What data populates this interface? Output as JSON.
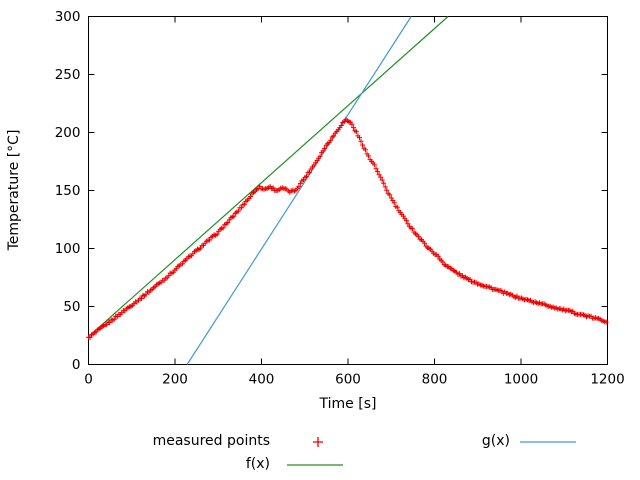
{
  "chart_data": {
    "type": "scatter",
    "title": "",
    "xlabel": "Time [s]",
    "ylabel": "Temperature [°C]",
    "xlim": [
      0,
      1200
    ],
    "ylim": [
      0,
      300
    ],
    "x_ticks": [
      0,
      200,
      400,
      600,
      800,
      1000,
      1200
    ],
    "y_ticks": [
      0,
      50,
      100,
      150,
      200,
      250,
      300
    ],
    "grid": false,
    "legend_position": "below-plot",
    "measured": {
      "label": "measured points",
      "color": "#ee0000",
      "marker": "plus",
      "sample_step": 3.5,
      "noise_amp": 1.8,
      "keypoints": [
        [
          0,
          23
        ],
        [
          60,
          40
        ],
        [
          120,
          57
        ],
        [
          180,
          75
        ],
        [
          240,
          95
        ],
        [
          300,
          114
        ],
        [
          340,
          130
        ],
        [
          370,
          143
        ],
        [
          390,
          152
        ],
        [
          395,
          153
        ],
        [
          405,
          151
        ],
        [
          420,
          153
        ],
        [
          435,
          150
        ],
        [
          450,
          152
        ],
        [
          465,
          149
        ],
        [
          478,
          150
        ],
        [
          490,
          156
        ],
        [
          510,
          166
        ],
        [
          530,
          177
        ],
        [
          550,
          189
        ],
        [
          570,
          199
        ],
        [
          585,
          207
        ],
        [
          595,
          211
        ],
        [
          605,
          209
        ],
        [
          615,
          203
        ],
        [
          625,
          196
        ],
        [
          635,
          189
        ],
        [
          645,
          181
        ],
        [
          652,
          176
        ],
        [
          658,
          174
        ],
        [
          670,
          165
        ],
        [
          690,
          150
        ],
        [
          710,
          137
        ],
        [
          730,
          126
        ],
        [
          750,
          116
        ],
        [
          770,
          107
        ],
        [
          790,
          99
        ],
        [
          800,
          96
        ],
        [
          808,
          93
        ],
        [
          815,
          90
        ],
        [
          825,
          86
        ],
        [
          840,
          82
        ],
        [
          860,
          77
        ],
        [
          880,
          73
        ],
        [
          900,
          70
        ],
        [
          930,
          66
        ],
        [
          960,
          62
        ],
        [
          1000,
          57
        ],
        [
          1040,
          53
        ],
        [
          1080,
          49
        ],
        [
          1120,
          45
        ],
        [
          1160,
          41
        ],
        [
          1200,
          37
        ]
      ]
    },
    "lines": [
      {
        "name": "f(x)",
        "label": "f(x)",
        "color": "#209020",
        "slope": 0.332,
        "intercept": 24
      },
      {
        "name": "g(x)",
        "label": "g(x)",
        "color": "#3e9ad6",
        "slope": 0.579,
        "intercept": -132
      }
    ]
  },
  "legend": {
    "measured_label": "measured points",
    "f_label": "f(x)",
    "g_label": "g(x)"
  }
}
